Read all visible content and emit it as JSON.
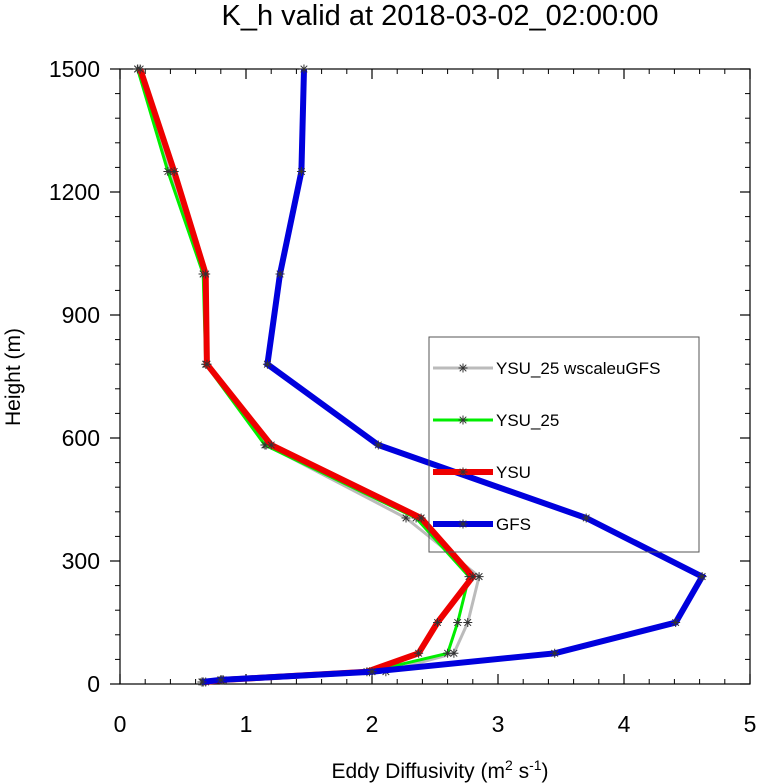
{
  "chart_data": {
    "type": "line",
    "title": "K_h valid at 2018-03-02_02:00:00",
    "xlabel": {
      "main": "Eddy Diffusivity (m",
      "sup1": "2",
      "mid": " s",
      "sup2": "-1",
      "end": ")"
    },
    "ylabel": "Height (m)",
    "xlim": [
      0,
      5
    ],
    "ylim": [
      0,
      1500
    ],
    "xticks": [
      0,
      1,
      2,
      3,
      4,
      5
    ],
    "yticks": [
      0,
      300,
      600,
      900,
      1200,
      1500
    ],
    "xtick_labels": [
      "0",
      "1",
      "2",
      "3",
      "4",
      "5"
    ],
    "ytick_labels": [
      "0",
      "300",
      "600",
      "900",
      "1200",
      "1500"
    ],
    "grid": false,
    "legend_position": "center-right",
    "series": [
      {
        "name": "YSU_25 wscaleuGFS",
        "color": "#bbbbbb",
        "width": 3,
        "x": [
          0.14,
          0.4,
          0.66,
          0.69,
          1.16,
          2.27,
          2.85,
          2.76,
          2.65,
          2.11,
          0.81,
          0.66
        ],
        "y": [
          1500,
          1250,
          1000,
          780,
          583,
          405,
          262,
          150,
          75,
          30,
          10,
          5
        ]
      },
      {
        "name": "YSU_25",
        "color": "#00ee00",
        "width": 3,
        "x": [
          0.14,
          0.38,
          0.66,
          0.68,
          1.15,
          2.35,
          2.77,
          2.68,
          2.6,
          1.98,
          0.8,
          0.66
        ],
        "y": [
          1500,
          1250,
          1000,
          780,
          583,
          405,
          262,
          150,
          75,
          30,
          10,
          5
        ]
      },
      {
        "name": "YSU",
        "color": "#ee0000",
        "width": 6,
        "x": [
          0.16,
          0.43,
          0.68,
          0.69,
          1.2,
          2.39,
          2.8,
          2.52,
          2.37,
          1.96,
          0.82,
          0.68
        ],
        "y": [
          1500,
          1250,
          1000,
          780,
          583,
          405,
          262,
          150,
          75,
          30,
          10,
          5
        ]
      },
      {
        "name": "GFS",
        "color": "#0000dd",
        "width": 6,
        "x": [
          1.46,
          1.44,
          1.27,
          1.17,
          2.05,
          3.7,
          4.62,
          4.41,
          3.45,
          2.0,
          0.8,
          0.65
        ],
        "y": [
          1500,
          1250,
          1000,
          780,
          583,
          405,
          262,
          150,
          75,
          30,
          10,
          5
        ]
      }
    ]
  }
}
